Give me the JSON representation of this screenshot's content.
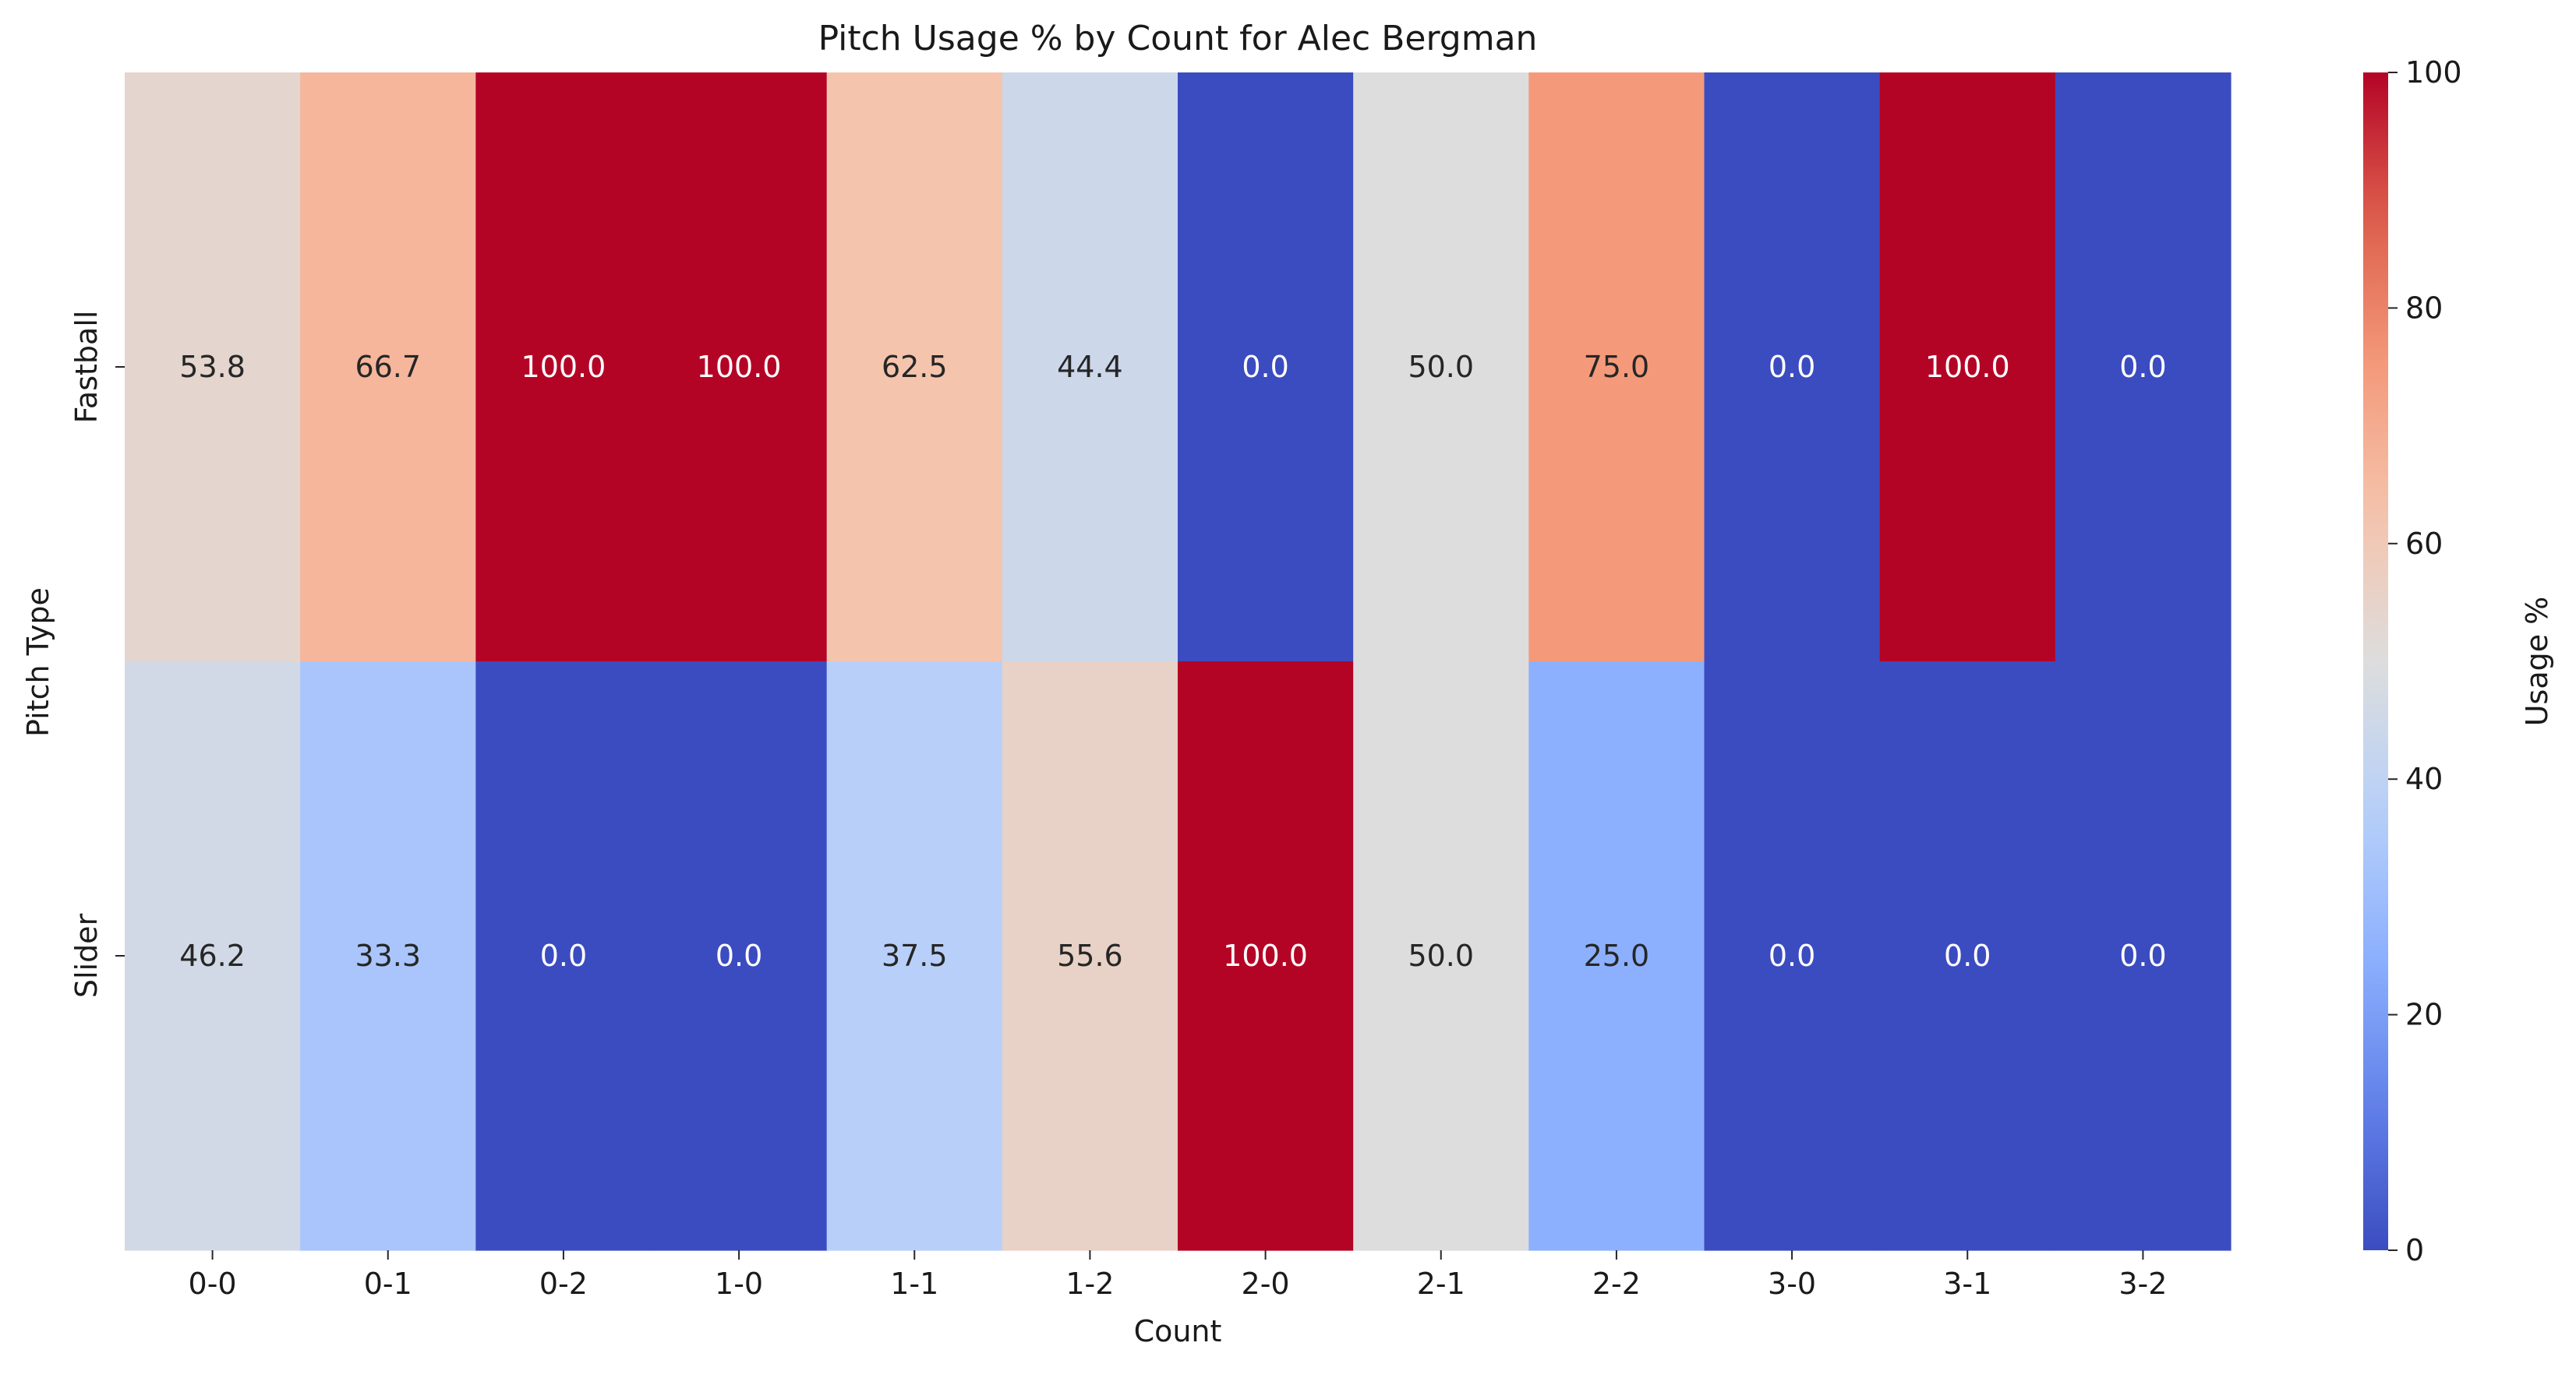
{
  "chart_data": {
    "type": "heatmap",
    "title": "Pitch Usage % by Count for Alec Bergman",
    "xlabel": "Count",
    "ylabel": "Pitch Type",
    "x_categories": [
      "0-0",
      "0-1",
      "0-2",
      "1-0",
      "1-1",
      "1-2",
      "2-0",
      "2-1",
      "2-2",
      "3-0",
      "3-1",
      "3-2"
    ],
    "y_categories": [
      "Fastball",
      "Slider"
    ],
    "values": [
      [
        53.8,
        66.7,
        100.0,
        100.0,
        62.5,
        44.4,
        0.0,
        50.0,
        75.0,
        0.0,
        100.0,
        0.0
      ],
      [
        46.2,
        33.3,
        0.0,
        0.0,
        37.5,
        55.6,
        100.0,
        50.0,
        25.0,
        0.0,
        0.0,
        0.0
      ]
    ],
    "colormap": "coolwarm",
    "vmin": 0,
    "vmax": 100,
    "colorbar": {
      "label": "Usage %",
      "ticks": [
        0,
        20,
        40,
        60,
        80,
        100
      ]
    },
    "annotations": true
  }
}
